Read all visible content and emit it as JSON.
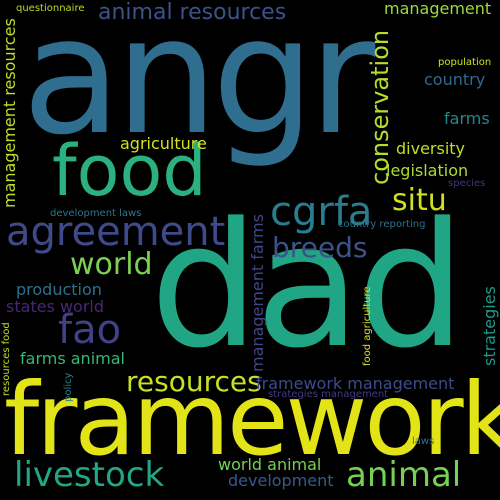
{
  "wordcloud": {
    "background": "#000000",
    "words": [
      {
        "id": "angr",
        "text": "angr",
        "color": "#2f6e8e"
      },
      {
        "id": "dad",
        "text": "dad",
        "color": "#21a685"
      },
      {
        "id": "framework",
        "text": "framework",
        "color": "#e2e418"
      },
      {
        "id": "food",
        "text": "food",
        "color": "#2bb07f"
      },
      {
        "id": "agreement",
        "text": "agreement",
        "color": "#3e4a89"
      },
      {
        "id": "cgrfa",
        "text": "cgrfa",
        "color": "#287d8e"
      },
      {
        "id": "situ",
        "text": "situ",
        "color": "#d0e11c"
      },
      {
        "id": "world",
        "text": "world",
        "color": "#7ad151"
      },
      {
        "id": "breeds",
        "text": "breeds",
        "color": "#3b528b"
      },
      {
        "id": "fao",
        "text": "fao",
        "color": "#424086"
      },
      {
        "id": "resources",
        "text": "resources",
        "color": "#c8e020"
      },
      {
        "id": "livestock",
        "text": "livestock",
        "color": "#22a785"
      },
      {
        "id": "animal",
        "text": "animal",
        "color": "#75d054"
      },
      {
        "id": "animal-resources",
        "text": "animal resources",
        "color": "#3b528b"
      },
      {
        "id": "conservation",
        "text": "conservation",
        "color": "#b5de2b"
      },
      {
        "id": "management-top",
        "text": "management",
        "color": "#9fda3a"
      },
      {
        "id": "questionnaire",
        "text": "questionnaire",
        "color": "#b8de29"
      },
      {
        "id": "population",
        "text": "population",
        "color": "#d2e21b"
      },
      {
        "id": "country",
        "text": "country",
        "color": "#31688e"
      },
      {
        "id": "farms",
        "text": "farms",
        "color": "#23888e"
      },
      {
        "id": "diversity",
        "text": "diversity",
        "color": "#c2df23"
      },
      {
        "id": "legislation",
        "text": "legislation",
        "color": "#addc30"
      },
      {
        "id": "species",
        "text": "species",
        "color": "#46327e"
      },
      {
        "id": "agriculture",
        "text": "agriculture",
        "color": "#d5e21a"
      },
      {
        "id": "development-laws",
        "text": "development laws",
        "color": "#2a788e"
      },
      {
        "id": "country-reporting",
        "text": "country reporting",
        "color": "#2c718e"
      },
      {
        "id": "production",
        "text": "production",
        "color": "#2d708e"
      },
      {
        "id": "states-world",
        "text": "states world",
        "color": "#482777"
      },
      {
        "id": "farms-animal",
        "text": "farms animal",
        "color": "#35b779"
      },
      {
        "id": "framework-management",
        "text": "framework management",
        "color": "#3e4a89"
      },
      {
        "id": "world-animal",
        "text": "world animal",
        "color": "#73d056"
      },
      {
        "id": "development",
        "text": "development",
        "color": "#38598c"
      },
      {
        "id": "laws",
        "text": "laws",
        "color": "#2c718e"
      },
      {
        "id": "strategies-management",
        "text": "strategies management",
        "color": "#443983"
      },
      {
        "id": "management-resources",
        "text": "management resources",
        "color": "#c0df25"
      },
      {
        "id": "management-farms",
        "text": "management farms",
        "color": "#404688"
      },
      {
        "id": "resources-food",
        "text": "resources food",
        "color": "#bddf26"
      },
      {
        "id": "policy",
        "text": "policy",
        "color": "#26828e"
      },
      {
        "id": "food-agriculture",
        "text": "food agriculture",
        "color": "#d8e219"
      },
      {
        "id": "strategies",
        "text": "strategies",
        "color": "#1f9a8a"
      }
    ]
  }
}
